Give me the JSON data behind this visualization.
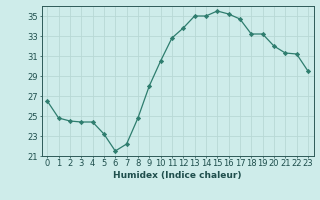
{
  "x": [
    0,
    1,
    2,
    3,
    4,
    5,
    6,
    7,
    8,
    9,
    10,
    11,
    12,
    13,
    14,
    15,
    16,
    17,
    18,
    19,
    20,
    21,
    22,
    23
  ],
  "y": [
    26.5,
    24.8,
    24.5,
    24.4,
    24.4,
    23.2,
    21.5,
    22.2,
    24.8,
    28.0,
    30.5,
    32.8,
    33.8,
    35.0,
    35.0,
    35.5,
    35.2,
    34.7,
    33.2,
    33.2,
    32.0,
    31.3,
    31.2,
    29.5
  ],
  "line_color": "#2e7d6e",
  "marker": "D",
  "marker_size": 2.2,
  "bg_color": "#ceecea",
  "grid_color": "#b8d8d5",
  "xlabel": "Humidex (Indice chaleur)",
  "xlim": [
    -0.5,
    23.5
  ],
  "ylim": [
    21,
    36
  ],
  "yticks": [
    21,
    23,
    25,
    27,
    29,
    31,
    33,
    35
  ],
  "tick_color": "#1e4e4c",
  "axis_color": "#2e5a58",
  "label_fontsize": 6.5,
  "tick_fontsize": 6.0
}
